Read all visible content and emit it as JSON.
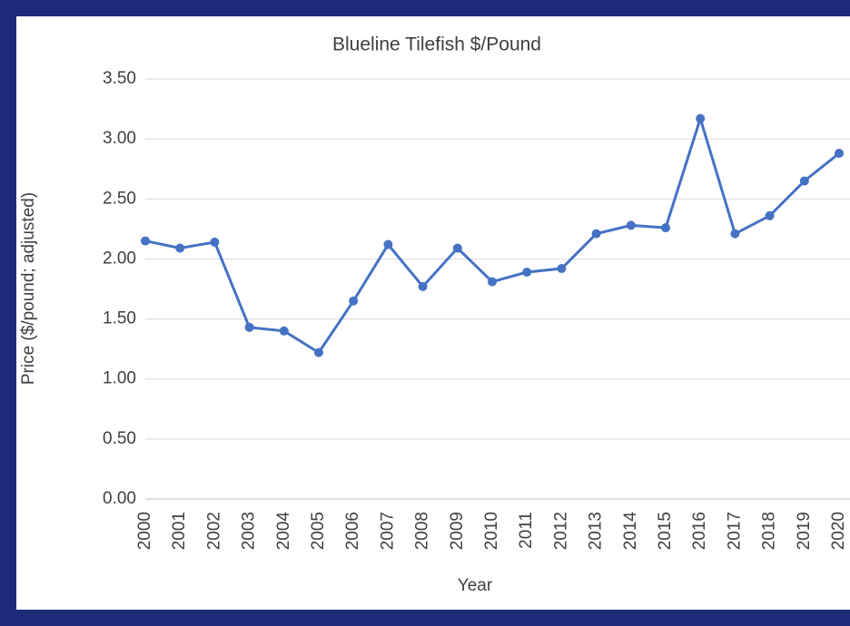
{
  "chart_data": {
    "type": "line",
    "title": "Blueline Tilefish $/Pound",
    "x_label": "Year",
    "y_label": "Price ($/pound; adjusted)",
    "categories": [
      "2000",
      "2001",
      "2002",
      "2003",
      "2004",
      "2005",
      "2006",
      "2007",
      "2008",
      "2009",
      "2010",
      "2011",
      "2012",
      "2013",
      "2014",
      "2015",
      "2016",
      "2017",
      "2018",
      "2019",
      "2020"
    ],
    "values": [
      2.15,
      2.09,
      2.14,
      1.43,
      1.4,
      1.22,
      1.65,
      2.12,
      1.77,
      2.09,
      1.81,
      1.89,
      1.92,
      2.21,
      2.28,
      2.26,
      3.17,
      2.21,
      2.36,
      2.65,
      2.88
    ],
    "color": "#4472c4",
    "ylim": [
      0,
      3.5
    ],
    "yticks": [
      {
        "value": 0,
        "label": "0.00"
      },
      {
        "value": 0.5,
        "label": "0.50"
      },
      {
        "value": 1,
        "label": "1.00"
      },
      {
        "value": 1.5,
        "label": "1.50"
      },
      {
        "value": 2,
        "label": "2.00"
      },
      {
        "value": 2.5,
        "label": "2.50"
      },
      {
        "value": 3,
        "label": "3.00"
      },
      {
        "value": 3.5,
        "label": "3.50"
      }
    ],
    "grid": true
  }
}
